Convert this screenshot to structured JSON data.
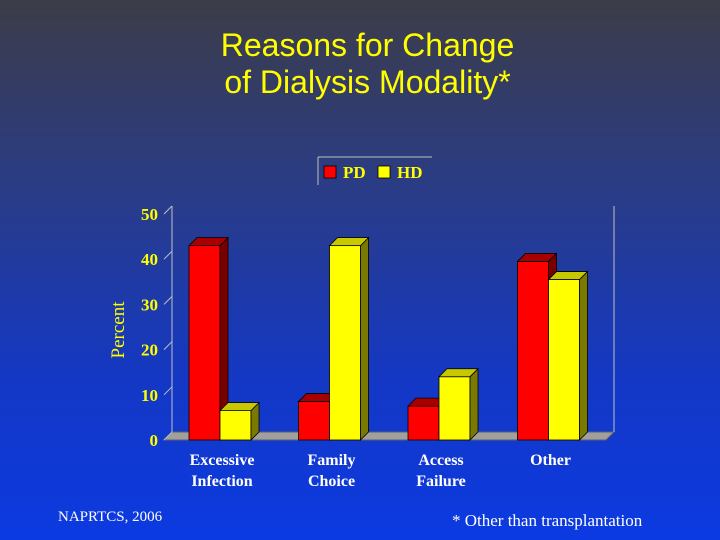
{
  "title_lines": [
    "Reasons for Change",
    "of Dialysis Modality*"
  ],
  "footer": {
    "source": "NAPRTCS, 2006",
    "note": "* Other than transplantation"
  },
  "chart_data": {
    "type": "bar",
    "title": "Reasons for Change of Dialysis Modality*",
    "xlabel": "",
    "ylabel": "Percent",
    "categories": [
      [
        "Excessive",
        "Infection"
      ],
      [
        "Family",
        "Choice"
      ],
      [
        "Access",
        "Failure"
      ],
      [
        "Other"
      ]
    ],
    "series": [
      {
        "name": "PD",
        "values": [
          43,
          8.5,
          7.5,
          39.5
        ],
        "color": "#ff0000",
        "side": "#7a0000",
        "top": "#a80000"
      },
      {
        "name": "HD",
        "values": [
          6.5,
          43,
          14,
          35.5
        ],
        "color": "#ffff00",
        "side": "#7a7a00",
        "top": "#c8c800"
      }
    ],
    "yticks": [
      0,
      10,
      20,
      30,
      40,
      50
    ],
    "ylim": [
      0,
      50
    ],
    "grid": false,
    "legend": "top"
  }
}
